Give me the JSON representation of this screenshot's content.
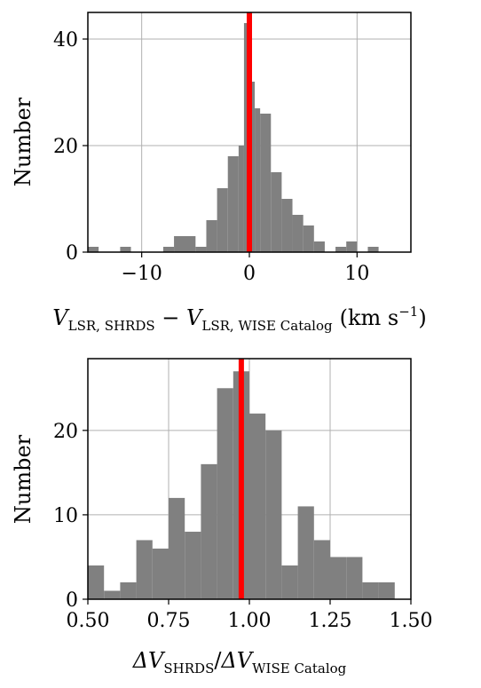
{
  "chart_data": [
    {
      "type": "bar",
      "style": "histogram",
      "xlim": [
        -15,
        15
      ],
      "ylim": [
        0,
        45
      ],
      "grid": true,
      "bar_color": "#808080",
      "marker_color": "#ff0000",
      "marker_x": 0,
      "bin_width": 1.5,
      "bins": [
        {
          "x0": -15.0,
          "x1": -14.0,
          "y": 1
        },
        {
          "x0": -12.0,
          "x1": -11.0,
          "y": 1
        },
        {
          "x0": -10.0,
          "x1": -9.0,
          "y": 0
        },
        {
          "x0": -8.0,
          "x1": -7.0,
          "y": 1
        },
        {
          "x0": -7.0,
          "x1": -5.0,
          "y": 3
        },
        {
          "x0": -5.0,
          "x1": -4.0,
          "y": 1
        },
        {
          "x0": -4.0,
          "x1": -3.0,
          "y": 6
        },
        {
          "x0": -3.0,
          "x1": -2.0,
          "y": 12
        },
        {
          "x0": -2.0,
          "x1": -1.0,
          "y": 18
        },
        {
          "x0": -1.0,
          "x1": -0.5,
          "y": 20
        },
        {
          "x0": -0.5,
          "x1": 0.0,
          "y": 43
        },
        {
          "x0": 0.0,
          "x1": 0.5,
          "y": 32
        },
        {
          "x0": 0.5,
          "x1": 1.0,
          "y": 27
        },
        {
          "x0": 1.0,
          "x1": 2.0,
          "y": 26
        },
        {
          "x0": 2.0,
          "x1": 3.0,
          "y": 15
        },
        {
          "x0": 3.0,
          "x1": 4.0,
          "y": 10
        },
        {
          "x0": 4.0,
          "x1": 5.0,
          "y": 7
        },
        {
          "x0": 5.0,
          "x1": 6.0,
          "y": 5
        },
        {
          "x0": 6.0,
          "x1": 7.0,
          "y": 2
        },
        {
          "x0": 8.0,
          "x1": 9.0,
          "y": 1
        },
        {
          "x0": 9.0,
          "x1": 10.0,
          "y": 2
        },
        {
          "x0": 11.0,
          "x1": 12.0,
          "y": 1
        }
      ],
      "xticks": [
        -10,
        0,
        10
      ],
      "xtick_labels": [
        "−10",
        "0",
        "10"
      ],
      "yticks": [
        0,
        20,
        40
      ],
      "ytick_labels": [
        "0",
        "20",
        "40"
      ],
      "ylabel": "Number",
      "xlabel": {
        "v1": "V",
        "s1": "LSR, SHRDS",
        "minus": " − ",
        "v2": "V",
        "s2": "LSR, WISE Catalog",
        "units": "(km s",
        "units_sup": "−1",
        "units_end": ")"
      }
    },
    {
      "type": "bar",
      "style": "histogram",
      "xlim": [
        0.5,
        1.5
      ],
      "ylim": [
        0,
        28.5
      ],
      "grid": true,
      "bar_color": "#808080",
      "marker_color": "#ff0000",
      "marker_x": 0.975,
      "bins": [
        {
          "x0": 0.5,
          "x1": 0.55,
          "y": 4
        },
        {
          "x0": 0.55,
          "x1": 0.6,
          "y": 1
        },
        {
          "x0": 0.6,
          "x1": 0.65,
          "y": 2
        },
        {
          "x0": 0.65,
          "x1": 0.7,
          "y": 7
        },
        {
          "x0": 0.7,
          "x1": 0.75,
          "y": 6
        },
        {
          "x0": 0.75,
          "x1": 0.8,
          "y": 12
        },
        {
          "x0": 0.8,
          "x1": 0.85,
          "y": 8
        },
        {
          "x0": 0.85,
          "x1": 0.9,
          "y": 16
        },
        {
          "x0": 0.9,
          "x1": 0.95,
          "y": 25
        },
        {
          "x0": 0.95,
          "x1": 1.0,
          "y": 27
        },
        {
          "x0": 1.0,
          "x1": 1.05,
          "y": 22
        },
        {
          "x0": 1.05,
          "x1": 1.1,
          "y": 20
        },
        {
          "x0": 1.1,
          "x1": 1.15,
          "y": 4
        },
        {
          "x0": 1.15,
          "x1": 1.2,
          "y": 11
        },
        {
          "x0": 1.2,
          "x1": 1.25,
          "y": 7
        },
        {
          "x0": 1.25,
          "x1": 1.3,
          "y": 5
        },
        {
          "x0": 1.3,
          "x1": 1.35,
          "y": 5
        },
        {
          "x0": 1.35,
          "x1": 1.4,
          "y": 2
        },
        {
          "x0": 1.4,
          "x1": 1.45,
          "y": 2
        }
      ],
      "xticks": [
        0.5,
        0.75,
        1.0,
        1.25,
        1.5
      ],
      "xtick_labels": [
        "0.50",
        "0.75",
        "1.00",
        "1.25",
        "1.50"
      ],
      "yticks": [
        0,
        10,
        20
      ],
      "ytick_labels": [
        "0",
        "10",
        "20"
      ],
      "ylabel": "Number",
      "xlabel": {
        "d1": "ΔV",
        "s1": "SHRDS",
        "slash": "/",
        "d2": "ΔV",
        "s2": "WISE Catalog"
      }
    }
  ]
}
